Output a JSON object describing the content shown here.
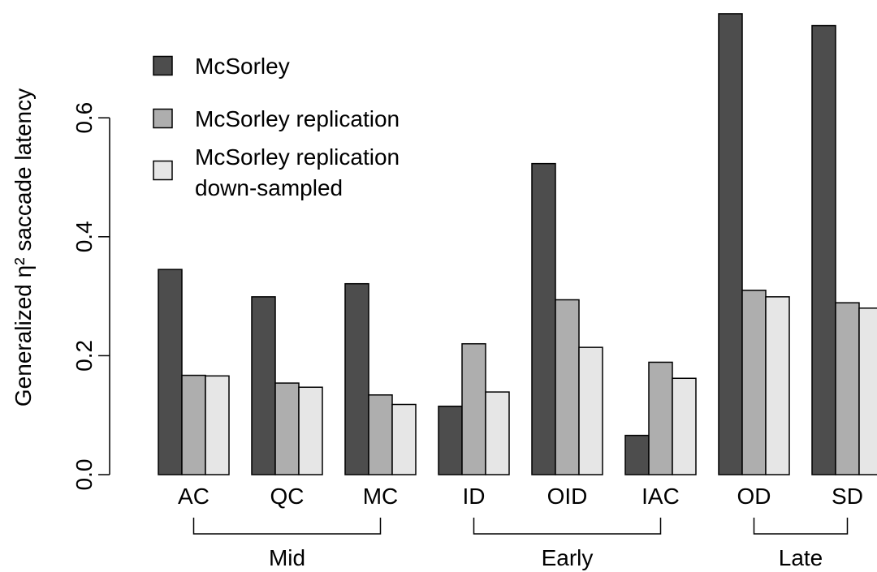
{
  "chart_data": {
    "type": "bar",
    "title": "",
    "xlabel": "",
    "ylabel": "Generalized η² saccade latency",
    "ylim": [
      0,
      0.78
    ],
    "yticks": [
      "0.0",
      "0.2",
      "0.4",
      "0.6"
    ],
    "y_tick_values": [
      0,
      0.2,
      0.4,
      0.6
    ],
    "grid": false,
    "legend_position": "top-left",
    "categories": [
      "AC",
      "QC",
      "MC",
      "ID",
      "OID",
      "IAC",
      "OD",
      "SD"
    ],
    "series": [
      {
        "name": "McSorley",
        "color": "#4d4d4d",
        "values": [
          0.345,
          0.299,
          0.321,
          0.115,
          0.523,
          0.066,
          0.775,
          0.755
        ]
      },
      {
        "name": "McSorley replication",
        "color": "#aeaeae",
        "values": [
          0.167,
          0.154,
          0.134,
          0.22,
          0.294,
          0.189,
          0.31,
          0.289
        ]
      },
      {
        "name": "McSorley replication down-sampled",
        "name_lines": [
          "McSorley replication",
          "down-sampled"
        ],
        "color": "#e6e6e6",
        "values": [
          0.166,
          0.147,
          0.118,
          0.139,
          0.214,
          0.162,
          0.299,
          0.28
        ]
      }
    ],
    "groups": [
      {
        "label": "Mid",
        "categories": [
          "AC",
          "QC",
          "MC"
        ]
      },
      {
        "label": "Early",
        "categories": [
          "ID",
          "OID",
          "IAC"
        ]
      },
      {
        "label": "Late",
        "categories": [
          "OD",
          "SD"
        ]
      }
    ]
  }
}
